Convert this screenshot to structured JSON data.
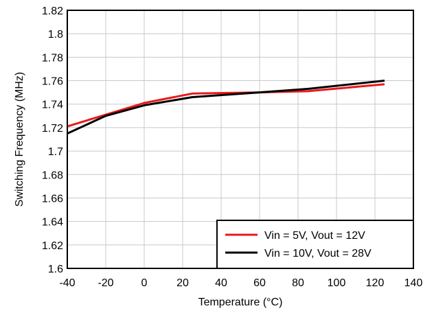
{
  "chart_data": {
    "type": "line",
    "xlabel": "Temperature (°C)",
    "ylabel": "Switching Frequency (MHz)",
    "xlim": [
      -40,
      140
    ],
    "ylim": [
      1.6,
      1.82
    ],
    "x_ticks": [
      "-40",
      "-20",
      "0",
      "20",
      "40",
      "60",
      "80",
      "100",
      "120",
      "140"
    ],
    "y_ticks": [
      "1.6",
      "1.62",
      "1.64",
      "1.66",
      "1.68",
      "1.7",
      "1.72",
      "1.74",
      "1.76",
      "1.78",
      "1.8",
      "1.82"
    ],
    "grid": true,
    "legend_position": "bottom-right",
    "series": [
      {
        "name": "Vin = 5V, Vout = 12V",
        "color": "#e8191b",
        "x": [
          -40,
          -20,
          0,
          25,
          60,
          85,
          125
        ],
        "y": [
          1.721,
          1.731,
          1.741,
          1.749,
          1.75,
          1.751,
          1.757
        ]
      },
      {
        "name": "Vin = 10V, Vout = 28V",
        "color": "#000000",
        "x": [
          -40,
          -20,
          0,
          25,
          60,
          85,
          125
        ],
        "y": [
          1.715,
          1.73,
          1.739,
          1.746,
          1.75,
          1.753,
          1.76
        ]
      }
    ]
  }
}
